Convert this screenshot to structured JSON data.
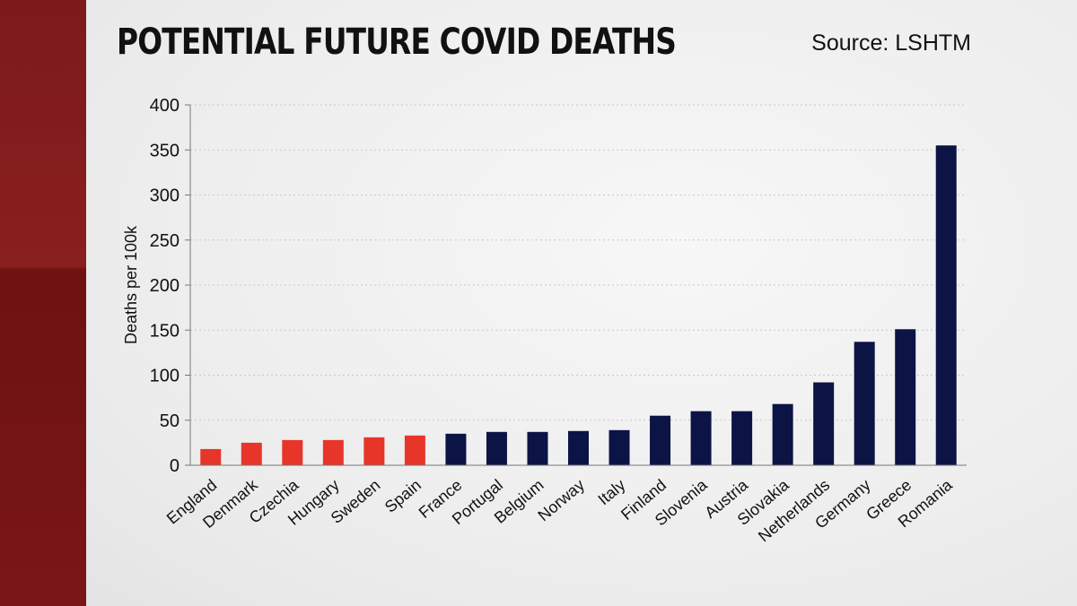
{
  "header": {
    "title": "POTENTIAL FUTURE COVID DEATHS",
    "source": "Source: LSHTM"
  },
  "colors": {
    "highlight": "#e8352a",
    "primary": "#0c1446",
    "grid": "#c8c8c8",
    "axis": "#777777",
    "text": "#111111"
  },
  "chart_data": {
    "type": "bar",
    "title": "POTENTIAL FUTURE COVID DEATHS",
    "xlabel": "",
    "ylabel": "Deaths per 100k",
    "ylim": [
      0,
      400
    ],
    "yticks": [
      0,
      50,
      100,
      150,
      200,
      250,
      300,
      350,
      400
    ],
    "grid": true,
    "categories": [
      "England",
      "Denmark",
      "Czechia",
      "Hungary",
      "Sweden",
      "Spain",
      "France",
      "Portugal",
      "Belgium",
      "Norway",
      "Italy",
      "Finland",
      "Slovenia",
      "Austria",
      "Slovakia",
      "Netherlands",
      "Germany",
      "Greece",
      "Romania"
    ],
    "values": [
      18,
      25,
      28,
      28,
      31,
      33,
      35,
      37,
      37,
      38,
      39,
      55,
      60,
      60,
      68,
      92,
      137,
      151,
      355
    ],
    "highlighted": [
      "England",
      "Denmark",
      "Czechia",
      "Hungary",
      "Sweden",
      "Spain"
    ]
  }
}
